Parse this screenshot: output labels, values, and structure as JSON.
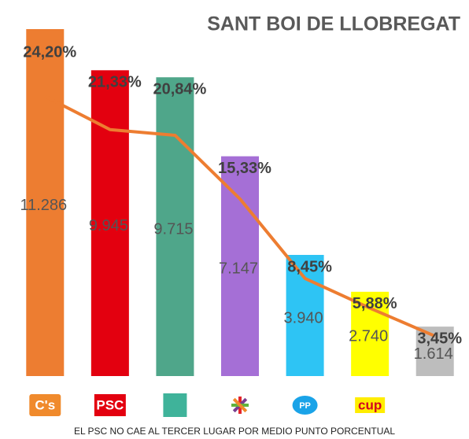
{
  "chart_data": {
    "type": "bar",
    "title": "SANT BOI DE LLOBREGAT",
    "caption": "EL PSC NO CAE AL TERCER LUGAR POR MEDIO PUNTO PORCENTUAL",
    "categories": [
      "C's",
      "PSC",
      null,
      null,
      "PP",
      "cup",
      null
    ],
    "values": [
      24.2,
      21.33,
      20.84,
      15.33,
      8.45,
      5.88,
      3.45
    ],
    "value_labels": [
      "24,20%",
      "21,33%",
      "20,84%",
      "15,33%",
      "8,45%",
      "5,88%",
      "3,45%"
    ],
    "colors": [
      "#ed7d31",
      "#e3000f",
      "#4fa68a",
      "#a56fd6",
      "#2ec4f4",
      "#ffff00",
      "#bdbdbd"
    ],
    "ylim": [
      0,
      24.2
    ],
    "line": {
      "color": "#ed7d31",
      "axis": "y2",
      "values": [
        11286,
        9945,
        9715,
        7147,
        3940,
        2740,
        1614
      ],
      "value_labels": [
        "11.286",
        "9.945",
        "9.715",
        "7.147",
        "3.940",
        "2.740",
        "1.614"
      ]
    },
    "y2lim": [
      0,
      14000
    ]
  }
}
